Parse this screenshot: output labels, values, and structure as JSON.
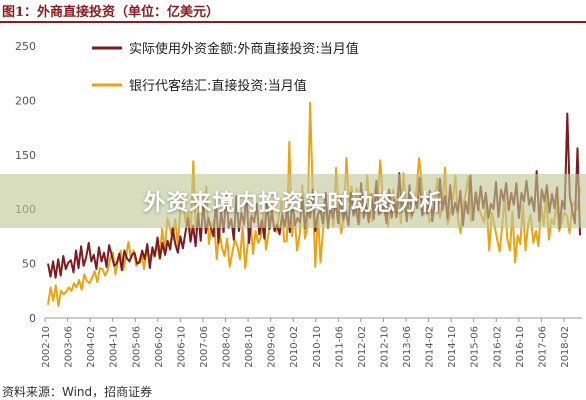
{
  "header": {
    "figure_title": "图1：外商直接投资（单位：亿美元）"
  },
  "banner": {
    "text": "外资来境内投资实时动态分析"
  },
  "footer": {
    "source": "资料来源：Wind，招商证券"
  },
  "colors": {
    "title": "#8b1c22",
    "series_fdi": "#7a1d22",
    "series_bank": "#e8a317",
    "axis": "#999999"
  },
  "chart_data": {
    "type": "line",
    "ylim": [
      0,
      250
    ],
    "y_ticks": [
      "0",
      "50",
      "100",
      "150",
      "200",
      "250"
    ],
    "x_tick_labels": [
      "2002-10",
      "2003-06",
      "2004-02",
      "2004-10",
      "2005-06",
      "2006-02",
      "2006-10",
      "2007-06",
      "2008-02",
      "2008-10",
      "2009-06",
      "2010-02",
      "2010-10",
      "2011-06",
      "2012-02",
      "2012-10",
      "2013-06",
      "2014-02",
      "2014-10",
      "2015-06",
      "2016-02",
      "2016-10",
      "2017-06",
      "2018-02"
    ],
    "legend": "top-left",
    "series": [
      {
        "name": "实际使用外资金额:外商直接投资:当月值",
        "values": [
          50,
          38,
          52,
          37,
          54,
          39,
          57,
          45,
          51,
          53,
          42,
          62,
          46,
          66,
          48,
          56,
          69,
          52,
          58,
          45,
          65,
          52,
          60,
          47,
          67,
          58,
          48,
          50,
          59,
          44,
          62,
          55,
          52,
          58,
          60,
          50,
          51,
          62,
          54,
          68,
          46,
          65,
          57,
          74,
          55,
          69,
          58,
          71,
          63,
          83,
          68,
          60,
          75,
          64,
          79,
          92,
          70,
          85,
          66,
          96,
          71,
          105,
          78,
          92,
          83,
          75,
          108,
          69,
          98,
          79,
          114,
          83,
          91,
          72,
          112,
          80,
          97,
          86,
          113,
          69,
          94,
          88,
          105,
          77,
          90,
          73,
          107,
          82,
          98,
          80,
          86,
          77,
          95,
          84,
          101,
          79,
          108,
          85,
          92,
          88,
          110,
          83,
          100,
          92,
          118,
          80,
          95,
          99,
          87,
          115,
          83,
          103,
          92,
          108,
          87,
          110,
          90,
          99,
          85,
          115,
          94,
          100,
          86,
          124,
          92,
          105,
          88,
          114,
          91,
          126,
          95,
          98,
          105,
          87,
          118,
          92,
          109,
          93,
          133,
          98,
          107,
          89,
          122,
          94,
          110,
          101,
          129,
          94,
          104,
          96,
          117,
          89,
          108,
          97,
          128,
          99,
          112,
          91,
          122,
          95,
          106,
          97,
          117,
          85,
          107,
          96,
          131,
          90,
          115,
          99,
          121,
          101,
          115,
          92,
          105,
          100,
          125,
          93,
          118,
          108,
          124,
          99,
          115,
          104,
          124,
          92,
          115,
          107,
          126,
          104,
          111,
          98,
          135,
          89,
          118,
          107,
          122,
          97,
          114,
          101,
          120,
          83,
          108,
          100,
          188,
          112,
          98,
          87,
          156,
          76
        ]
      },
      {
        "name": "银行代客结汇:直接投资:当月值",
        "values": [
          12,
          28,
          16,
          30,
          11,
          25,
          22,
          24,
          28,
          25,
          32,
          28,
          35,
          26,
          40,
          34,
          32,
          37,
          43,
          33,
          46,
          45,
          39,
          44,
          55,
          60,
          40,
          53,
          62,
          44,
          56,
          70,
          55,
          62,
          48,
          52,
          59,
          45,
          62,
          55,
          60,
          56,
          68,
          54,
          82,
          62,
          92,
          83,
          72,
          91,
          66,
          101,
          110,
          88,
          97,
          79,
          144,
          81,
          98,
          114,
          92,
          121,
          68,
          83,
          90,
          54,
          80,
          65,
          57,
          73,
          47,
          60,
          72,
          66,
          54,
          84,
          46,
          68,
          92,
          59,
          80,
          69,
          74,
          96,
          63,
          78,
          103,
          84,
          79,
          95,
          107,
          70,
          71,
          162,
          75,
          95,
          62,
          77,
          122,
          73,
          85,
          198,
          117,
          47,
          96,
          51,
          82,
          102,
          89,
          102,
          84,
          138,
          99,
          78,
          92,
          147,
          107,
          121,
          98,
          119,
          87,
          114,
          94,
          131,
          99,
          89,
          119,
          106,
          145,
          111,
          96,
          84,
          105,
          118,
          92,
          115,
          87,
          133,
          99,
          104,
          91,
          102,
          118,
          147,
          126,
          96,
          110,
          88,
          92,
          103,
          128,
          92,
          104,
          138,
          86,
          96,
          109,
          131,
          91,
          78,
          104,
          115,
          130,
          89,
          99,
          116,
          101,
          94,
          88,
          107,
          62,
          97,
          86,
          73,
          61,
          83,
          112,
          73,
          62,
          98,
          51,
          76,
          68,
          104,
          62,
          86,
          95,
          69,
          80,
          66,
          104,
          85,
          114,
          72,
          91,
          86,
          107,
          80,
          88,
          97,
          94,
          78,
          103,
          107,
          100,
          120
        ]
      }
    ]
  }
}
